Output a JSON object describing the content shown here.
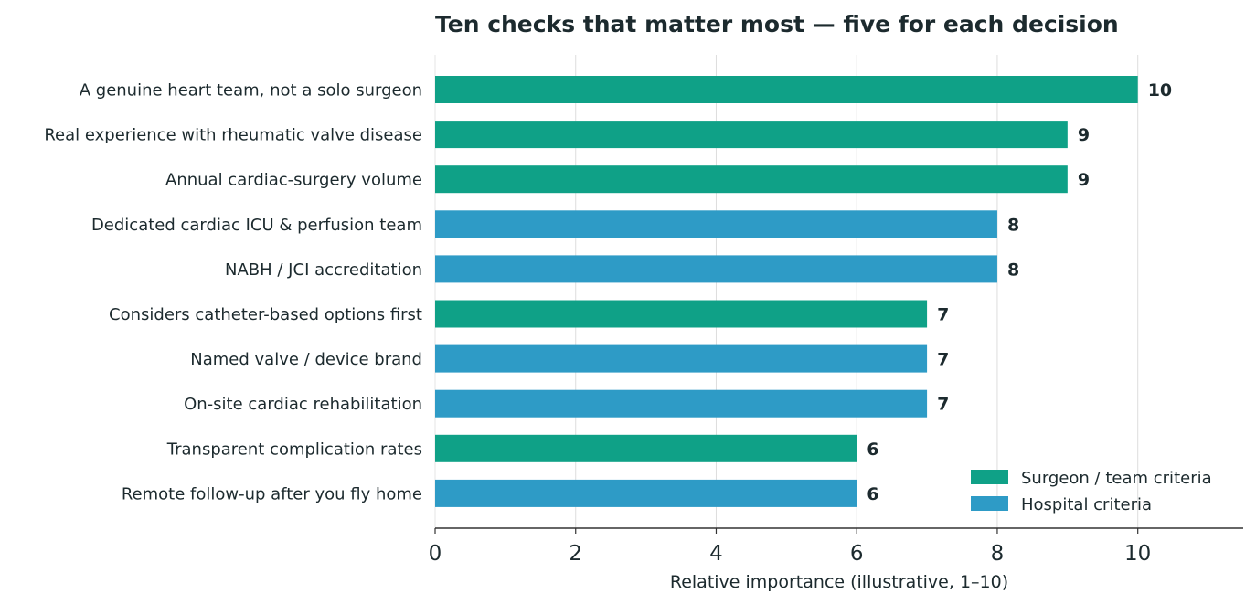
{
  "chart_data": {
    "type": "bar",
    "orientation": "horizontal",
    "title": "Ten checks that matter most — five for each decision",
    "xlabel": "Relative importance (illustrative, 1–10)",
    "ylabel": "",
    "xlim": [
      0,
      11.5
    ],
    "xticks": [
      0,
      2,
      4,
      6,
      8,
      10
    ],
    "grid": "vertical",
    "legend_position": "bottom-right",
    "series_colors": {
      "surgeon": "#0fa187",
      "hospital": "#2e9bc6"
    },
    "legend": [
      {
        "group": "surgeon",
        "label": "Surgeon / team criteria"
      },
      {
        "group": "hospital",
        "label": "Hospital criteria"
      }
    ],
    "bars": [
      {
        "label": "A genuine heart team, not a solo surgeon",
        "value": 10,
        "group": "surgeon"
      },
      {
        "label": "Real experience with rheumatic valve disease",
        "value": 9,
        "group": "surgeon"
      },
      {
        "label": "Annual cardiac-surgery volume",
        "value": 9,
        "group": "surgeon"
      },
      {
        "label": "Dedicated cardiac ICU & perfusion team",
        "value": 8,
        "group": "hospital"
      },
      {
        "label": "NABH / JCI accreditation",
        "value": 8,
        "group": "hospital"
      },
      {
        "label": "Considers catheter-based options first",
        "value": 7,
        "group": "surgeon"
      },
      {
        "label": "Named valve / device brand",
        "value": 7,
        "group": "hospital"
      },
      {
        "label": "On-site cardiac rehabilitation",
        "value": 7,
        "group": "hospital"
      },
      {
        "label": "Transparent complication rates",
        "value": 6,
        "group": "surgeon"
      },
      {
        "label": "Remote follow-up after you fly home",
        "value": 6,
        "group": "hospital"
      }
    ]
  }
}
